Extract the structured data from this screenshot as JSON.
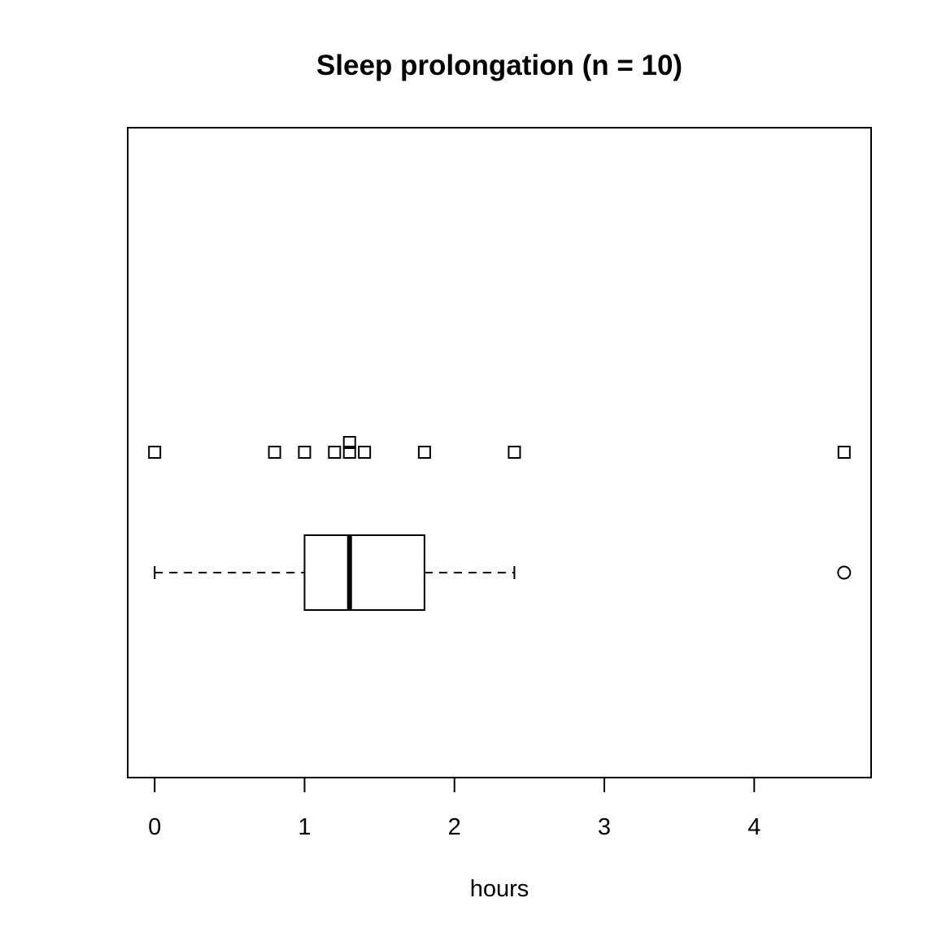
{
  "chart_data": {
    "type": "boxplot",
    "title": "Sleep prolongation (n = 10)",
    "xlabel": "hours",
    "ylabel": "",
    "xlim": [
      -0.18,
      4.78
    ],
    "x_ticks": [
      0,
      1,
      2,
      3,
      4
    ],
    "x_tick_labels": [
      "0",
      "1",
      "2",
      "3",
      "4"
    ],
    "orientation": "horizontal",
    "grid": false,
    "strip_points": [
      0.0,
      0.8,
      1.0,
      1.2,
      1.3,
      1.3,
      1.4,
      1.8,
      2.4,
      4.6
    ],
    "point_marker": "square",
    "boxplot": {
      "whisker_low": 0.0,
      "q1": 1.0,
      "median": 1.3,
      "q3": 1.8,
      "whisker_high": 2.4,
      "outliers": [
        4.6
      ],
      "outlier_marker": "circle"
    },
    "colors": {
      "stroke": "#000000",
      "background": "#ffffff"
    }
  }
}
